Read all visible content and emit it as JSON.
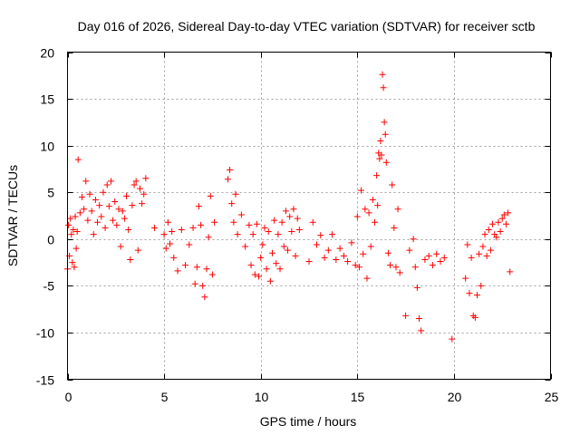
{
  "chart_data": {
    "type": "scatter",
    "title": "Day 016 of 2026, Sidereal Day-to-day VTEC variation (SDTVAR) for receiver sctb",
    "xlabel": "GPS time / hours",
    "ylabel": "SDTVAR / TECUs",
    "xlim": [
      0,
      25
    ],
    "ylim": [
      -15,
      20
    ],
    "xticks": [
      0,
      5,
      10,
      15,
      20,
      25
    ],
    "yticks": [
      -15,
      -10,
      -5,
      0,
      5,
      10,
      15,
      20
    ],
    "xtick_labels": [
      "0",
      "5",
      "10",
      "15",
      "20",
      "25"
    ],
    "ytick_labels": [
      "-15",
      "-10",
      "-5",
      "0",
      "5",
      "10",
      "15",
      "20"
    ],
    "grid": true,
    "marker": "+",
    "marker_color": "#ff0000",
    "series": [
      {
        "name": "SDTVAR",
        "x": [
          0.0,
          0.05,
          0.1,
          0.15,
          0.2,
          0.25,
          0.3,
          0.35,
          0.4,
          0.45,
          0.5,
          0.55,
          0.65,
          0.75,
          0.85,
          0.95,
          1.05,
          1.15,
          1.25,
          1.35,
          1.45,
          1.55,
          1.65,
          1.75,
          1.85,
          1.95,
          2.05,
          2.15,
          2.25,
          2.35,
          2.45,
          2.55,
          2.65,
          2.75,
          2.85,
          2.95,
          3.05,
          3.15,
          3.25,
          3.35,
          3.45,
          3.55,
          3.65,
          3.75,
          3.85,
          3.95,
          4.05,
          4.5,
          5.0,
          5.1,
          5.2,
          5.3,
          5.4,
          5.5,
          5.7,
          5.9,
          6.1,
          6.3,
          6.5,
          6.6,
          6.7,
          6.8,
          6.9,
          7.0,
          7.1,
          7.2,
          7.3,
          7.4,
          7.5,
          7.6,
          8.3,
          8.4,
          8.5,
          8.6,
          8.7,
          8.8,
          9.0,
          9.2,
          9.4,
          9.5,
          9.6,
          9.7,
          9.8,
          9.9,
          10.0,
          10.1,
          10.2,
          10.3,
          10.4,
          10.5,
          10.6,
          10.7,
          10.8,
          10.9,
          11.0,
          11.1,
          11.2,
          11.3,
          11.4,
          11.5,
          11.6,
          11.7,
          11.8,
          11.9,
          12.0,
          12.5,
          12.7,
          12.9,
          13.1,
          13.3,
          13.5,
          13.7,
          13.9,
          14.1,
          14.3,
          14.5,
          14.7,
          14.9,
          15.0,
          15.1,
          15.2,
          15.3,
          15.4,
          15.5,
          15.6,
          15.7,
          15.8,
          15.9,
          16.0,
          16.05,
          16.1,
          16.15,
          16.2,
          16.25,
          16.3,
          16.35,
          16.4,
          16.45,
          16.5,
          16.6,
          16.7,
          16.8,
          16.9,
          17.0,
          17.1,
          17.2,
          17.5,
          17.7,
          17.9,
          18.0,
          18.1,
          18.2,
          18.3,
          18.5,
          18.7,
          18.9,
          19.1,
          19.3,
          19.5,
          19.9,
          20.6,
          20.7,
          20.8,
          20.9,
          21.0,
          21.1,
          21.2,
          21.3,
          21.4,
          21.5,
          21.6,
          21.7,
          21.8,
          21.9,
          22.0,
          22.1,
          22.2,
          22.3,
          22.4,
          22.5,
          22.6,
          22.7,
          22.8,
          22.9
        ],
        "y": [
          -3.2,
          1.5,
          -1.8,
          2.2,
          0.5,
          -2.5,
          1.0,
          -3.0,
          2.4,
          -1.0,
          0.8,
          8.5,
          2.8,
          4.5,
          3.2,
          6.2,
          2.0,
          4.8,
          3.0,
          0.5,
          4.2,
          1.8,
          3.6,
          2.4,
          5.0,
          1.2,
          5.8,
          3.5,
          6.2,
          2.0,
          4.0,
          1.5,
          3.2,
          -0.8,
          3.0,
          2.2,
          4.6,
          1.0,
          -2.2,
          3.6,
          5.8,
          6.2,
          -1.2,
          5.4,
          3.8,
          4.8,
          6.5,
          1.2,
          0.5,
          -1.0,
          1.8,
          -0.5,
          0.8,
          -2.0,
          -3.4,
          1.0,
          -2.8,
          -0.6,
          1.2,
          -4.8,
          -3.0,
          3.5,
          1.5,
          -5.0,
          -6.2,
          -3.2,
          0.2,
          4.6,
          -3.8,
          1.8,
          6.4,
          7.4,
          3.8,
          1.8,
          4.8,
          0.5,
          2.6,
          -0.8,
          1.5,
          -2.8,
          0.5,
          -3.8,
          1.6,
          -4.0,
          -2.0,
          -0.6,
          1.2,
          -3.2,
          0.8,
          -4.5,
          -1.5,
          2.0,
          -2.6,
          0.5,
          -3.2,
          1.8,
          -0.8,
          3.0,
          -1.2,
          2.4,
          0.8,
          3.2,
          -1.8,
          2.2,
          1.0,
          -2.4,
          1.8,
          -0.6,
          0.4,
          -2.0,
          -1.2,
          0.5,
          -2.2,
          -1.0,
          -1.8,
          -2.4,
          -0.4,
          -2.8,
          2.4,
          -3.0,
          5.2,
          -1.6,
          3.2,
          -4.2,
          2.8,
          -0.8,
          4.2,
          1.8,
          6.8,
          3.6,
          9.2,
          8.6,
          10.5,
          9.0,
          17.6,
          16.2,
          12.5,
          11.2,
          8.2,
          -1.5,
          -2.8,
          5.8,
          1.2,
          -3.0,
          3.2,
          -3.6,
          -8.2,
          -1.2,
          0.0,
          -3.0,
          -5.2,
          -8.5,
          -9.8,
          -2.2,
          -1.8,
          -2.8,
          -1.6,
          -2.4,
          -2.0,
          -10.7,
          -4.2,
          -0.6,
          -5.8,
          -2.0,
          -8.2,
          -8.4,
          -6.0,
          -1.6,
          -5.0,
          -0.8,
          0.5,
          -1.8,
          1.0,
          -1.2,
          1.6,
          0.5,
          0.2,
          1.8,
          0.8,
          2.2,
          2.6,
          1.6,
          2.8,
          -3.5
        ]
      }
    ]
  }
}
